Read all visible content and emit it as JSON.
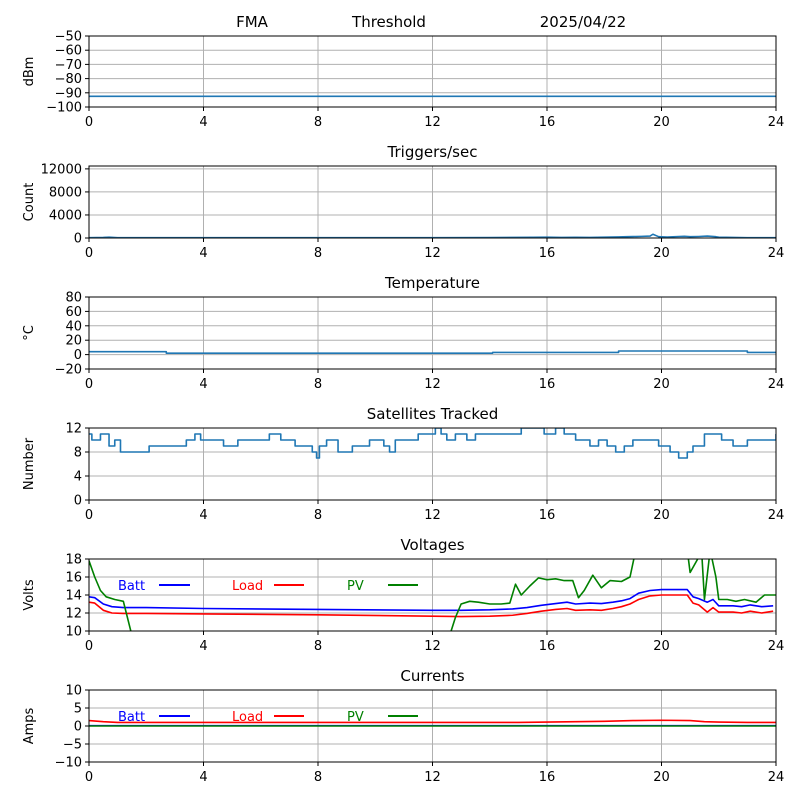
{
  "header": {
    "site": "FMA",
    "mode": "Threshold",
    "date": "2025/04/22"
  },
  "colors": {
    "series_default": "#1f77b4",
    "batt": "#0000ff",
    "load": "#ff0000",
    "pv": "#008000",
    "grid": "#b0b0b0"
  },
  "chart_data": [
    {
      "type": "line",
      "id": "rssi",
      "title": "",
      "xlabel": "",
      "ylabel": "dBm",
      "xlim": [
        0,
        24
      ],
      "ylim": [
        -100,
        -50
      ],
      "xticks": [
        0,
        4,
        8,
        12,
        16,
        20,
        24
      ],
      "yticks": [
        -100,
        -90,
        -80,
        -70,
        -60,
        -50
      ],
      "ytick_labels": [
        "−100",
        "−90",
        "−80",
        "−70",
        "−60",
        "−50"
      ],
      "grid": true,
      "series": [
        {
          "color": "#1f77b4",
          "x": [
            0,
            24
          ],
          "y": [
            -92.5,
            -92.5
          ]
        }
      ]
    },
    {
      "type": "line",
      "id": "triggers",
      "title": "Triggers/sec",
      "xlabel": "",
      "ylabel": "Count",
      "xlim": [
        0,
        24
      ],
      "ylim": [
        0,
        12500
      ],
      "xticks": [
        0,
        4,
        8,
        12,
        16,
        20,
        24
      ],
      "yticks": [
        0,
        4000,
        8000,
        12000
      ],
      "ytick_labels": [
        "0",
        "4000",
        "8000",
        "12000"
      ],
      "grid": true,
      "series": [
        {
          "color": "#1f77b4",
          "x": [
            0,
            0.5,
            0.7,
            1,
            3,
            6,
            9,
            12,
            14,
            15.5,
            16,
            16.5,
            17,
            17.5,
            18,
            18.5,
            18.8,
            19,
            19.3,
            19.6,
            19.7,
            19.9,
            20.2,
            20.5,
            20.8,
            21,
            21.3,
            21.6,
            21.9,
            22,
            22.5,
            23,
            24
          ],
          "y": [
            60,
            90,
            140,
            60,
            50,
            50,
            50,
            60,
            80,
            120,
            150,
            90,
            120,
            110,
            150,
            190,
            220,
            250,
            280,
            340,
            650,
            230,
            160,
            240,
            300,
            220,
            260,
            330,
            220,
            150,
            90,
            60,
            50
          ]
        }
      ]
    },
    {
      "type": "line",
      "id": "temperature",
      "title": "Temperature",
      "xlabel": "",
      "ylabel": "°C",
      "xlim": [
        0,
        24
      ],
      "ylim": [
        -20,
        80
      ],
      "xticks": [
        0,
        4,
        8,
        12,
        16,
        20,
        24
      ],
      "yticks": [
        -20,
        0,
        20,
        40,
        60,
        80
      ],
      "ytick_labels": [
        "−20",
        "0",
        "20",
        "40",
        "60",
        "80"
      ],
      "grid": true,
      "series": [
        {
          "color": "#1f77b4",
          "x": [
            0,
            2.7,
            2.7,
            14.1,
            14.1,
            18.5,
            18.5,
            23,
            23,
            24
          ],
          "y": [
            4,
            4,
            2,
            2,
            3,
            3,
            5,
            5,
            3,
            3
          ]
        }
      ]
    },
    {
      "type": "line",
      "id": "satellites",
      "title": "Satellites Tracked",
      "xlabel": "",
      "ylabel": "Number",
      "xlim": [
        0,
        24
      ],
      "ylim": [
        0,
        12
      ],
      "xticks": [
        0,
        4,
        8,
        12,
        16,
        20,
        24
      ],
      "yticks": [
        0,
        4,
        8,
        12
      ],
      "ytick_labels": [
        "0",
        "4",
        "8",
        "12"
      ],
      "grid": true,
      "step": true,
      "series": [
        {
          "color": "#1f77b4",
          "x": [
            0,
            0.1,
            0.4,
            0.7,
            0.9,
            1.1,
            1.2,
            2.1,
            2.3,
            3.4,
            3.5,
            3.7,
            3.9,
            4.1,
            4.7,
            5.2,
            5.8,
            6.3,
            6.7,
            7.2,
            7.6,
            7.8,
            7.95,
            8.05,
            8.3,
            8.7,
            9.2,
            9.8,
            10.3,
            10.5,
            10.7,
            11.2,
            11.5,
            11.9,
            12.1,
            12.3,
            12.5,
            12.8,
            13.2,
            13.5,
            13.8,
            14.2,
            14.5,
            15.1,
            15.4,
            15.9,
            16.3,
            16.6,
            17.0,
            17.5,
            17.8,
            18.1,
            18.4,
            18.7,
            19.0,
            19.5,
            19.9,
            20.3,
            20.6,
            20.9,
            21.1,
            21.5,
            22.1,
            22.5,
            23.0,
            23.6,
            24
          ],
          "y": [
            11,
            10,
            11,
            9,
            10,
            8,
            8,
            9,
            9,
            10,
            10,
            11,
            10,
            10,
            9,
            10,
            10,
            11,
            10,
            9,
            9,
            8,
            7,
            9,
            10,
            8,
            9,
            10,
            9,
            8,
            10,
            10,
            11,
            11,
            12,
            11,
            10,
            11,
            10,
            11,
            11,
            11,
            11,
            12,
            12,
            11,
            12,
            11,
            10,
            9,
            10,
            9,
            8,
            9,
            10,
            10,
            9,
            8,
            7,
            8,
            9,
            11,
            10,
            9,
            10,
            10,
            11
          ]
        }
      ]
    },
    {
      "type": "line",
      "id": "voltages",
      "title": "Voltages",
      "xlabel": "",
      "ylabel": "Volts",
      "xlim": [
        0,
        24
      ],
      "ylim": [
        10,
        18
      ],
      "xticks": [
        0,
        4,
        8,
        12,
        16,
        20,
        24
      ],
      "yticks": [
        10,
        12,
        14,
        16,
        18
      ],
      "ytick_labels": [
        "10",
        "12",
        "14",
        "16",
        "18"
      ],
      "grid": true,
      "legend": {
        "placement": "top-left",
        "entries": [
          "Batt",
          "Load",
          "PV"
        ]
      },
      "series": [
        {
          "name": "Batt",
          "color": "#0000ff",
          "x": [
            0,
            0.2,
            0.5,
            0.8,
            1.2,
            2,
            4,
            8,
            12,
            13,
            14,
            14.8,
            15.3,
            15.8,
            16.3,
            16.7,
            17,
            17.5,
            17.9,
            18.3,
            18.6,
            18.9,
            19.2,
            19.6,
            20,
            20.5,
            20.9,
            21.1,
            21.3,
            21.6,
            21.8,
            22,
            22.5,
            22.8,
            23.1,
            23.5,
            23.9
          ],
          "y": [
            13.8,
            13.7,
            13.0,
            12.7,
            12.6,
            12.6,
            12.5,
            12.4,
            12.3,
            12.3,
            12.35,
            12.45,
            12.6,
            12.85,
            13.05,
            13.2,
            13.0,
            13.1,
            13.05,
            13.2,
            13.35,
            13.6,
            14.2,
            14.5,
            14.6,
            14.6,
            14.6,
            13.8,
            13.6,
            13.2,
            13.5,
            12.8,
            12.8,
            12.7,
            12.9,
            12.7,
            12.8
          ]
        },
        {
          "name": "Load",
          "color": "#ff0000",
          "x": [
            0,
            0.2,
            0.5,
            0.8,
            1.2,
            2,
            4,
            8,
            12,
            13,
            14,
            14.8,
            15.3,
            15.8,
            16.3,
            16.7,
            17,
            17.5,
            17.9,
            18.3,
            18.6,
            18.9,
            19.2,
            19.6,
            20,
            20.5,
            20.9,
            21.1,
            21.3,
            21.6,
            21.8,
            22,
            22.5,
            22.8,
            23.1,
            23.5,
            23.9
          ],
          "y": [
            13.2,
            13.1,
            12.3,
            12.0,
            11.95,
            11.95,
            11.9,
            11.8,
            11.65,
            11.6,
            11.65,
            11.75,
            11.95,
            12.2,
            12.4,
            12.5,
            12.3,
            12.35,
            12.3,
            12.5,
            12.7,
            13.0,
            13.5,
            13.9,
            14.0,
            14.0,
            14.0,
            13.1,
            12.9,
            12.1,
            12.6,
            12.1,
            12.1,
            12.0,
            12.2,
            12.0,
            12.2
          ]
        },
        {
          "name": "PV",
          "color": "#008000",
          "x": [
            0,
            0.2,
            0.4,
            0.6,
            0.9,
            1.2,
            1.5,
            12.6,
            12.8,
            13.0,
            13.3,
            13.6,
            14.0,
            14.4,
            14.7,
            14.9,
            15.1,
            15.4,
            15.7,
            16.0,
            16.3,
            16.6,
            16.9,
            17.1,
            17.3,
            17.6,
            17.9,
            18.2,
            18.6,
            18.9,
            19.1,
            20.9,
            21.0,
            21.3,
            21.4,
            21.5,
            21.7,
            21.9,
            22.0,
            22.3,
            22.6,
            22.9,
            23.3,
            23.6,
            24
          ],
          "y": [
            17.8,
            16.0,
            14.5,
            13.8,
            13.5,
            13.3,
            9.5,
            9.5,
            11.5,
            13.0,
            13.3,
            13.2,
            13.0,
            13.0,
            13.1,
            15.2,
            14.0,
            15.0,
            15.9,
            15.7,
            15.8,
            15.6,
            15.6,
            13.7,
            14.5,
            16.2,
            14.8,
            15.6,
            15.5,
            16.0,
            19.0,
            19.0,
            16.5,
            18.2,
            19.0,
            13.5,
            19.0,
            16.0,
            13.5,
            13.5,
            13.3,
            13.5,
            13.2,
            14.0,
            14.0
          ]
        }
      ]
    },
    {
      "type": "line",
      "id": "currents",
      "title": "Currents",
      "xlabel": "",
      "ylabel": "Amps",
      "xlim": [
        0,
        24
      ],
      "ylim": [
        -10,
        10
      ],
      "xticks": [
        0,
        4,
        8,
        12,
        16,
        20,
        24
      ],
      "yticks": [
        -10,
        -5,
        0,
        5,
        10
      ],
      "ytick_labels": [
        "−10",
        "−5",
        "0",
        "5",
        "10"
      ],
      "grid": true,
      "legend": {
        "placement": "top-left",
        "entries": [
          "Batt",
          "Load",
          "PV"
        ]
      },
      "series": [
        {
          "name": "Batt",
          "color": "#0000ff",
          "x": [
            0,
            24
          ],
          "y": [
            0.1,
            0.1
          ]
        },
        {
          "name": "Load",
          "color": "#ff0000",
          "x": [
            0,
            0.5,
            1,
            4,
            8,
            12,
            15,
            16,
            17,
            18,
            19,
            20,
            21,
            21.5,
            22,
            23,
            24
          ],
          "y": [
            1.5,
            1.2,
            1.0,
            1.0,
            1.0,
            1.0,
            1.0,
            1.1,
            1.2,
            1.3,
            1.5,
            1.6,
            1.5,
            1.2,
            1.1,
            1.0,
            1.0
          ]
        },
        {
          "name": "PV",
          "color": "#008000",
          "x": [
            0,
            24
          ],
          "y": [
            0,
            0
          ]
        }
      ]
    }
  ]
}
